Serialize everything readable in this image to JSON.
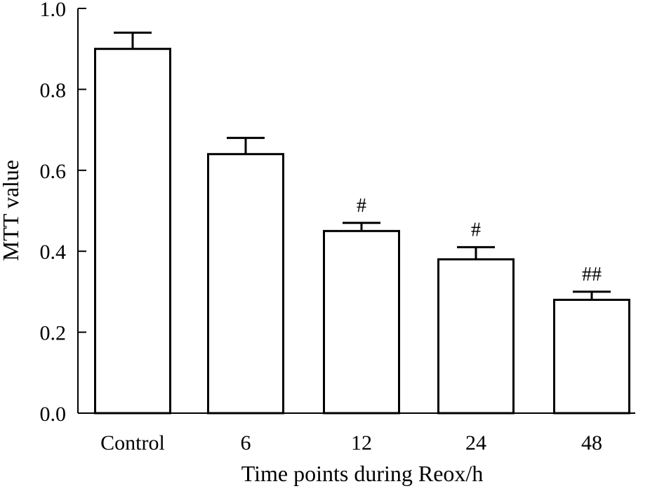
{
  "chart_data": {
    "type": "bar",
    "title": "",
    "xlabel": "Time points during Reox/h",
    "ylabel": "MTT value",
    "categories": [
      "Control",
      "6",
      "12",
      "24",
      "48"
    ],
    "values": [
      0.9,
      0.64,
      0.45,
      0.38,
      0.28
    ],
    "errors": [
      0.04,
      0.04,
      0.02,
      0.03,
      0.02
    ],
    "annotations": [
      "",
      "",
      "#",
      "#",
      "##"
    ],
    "ylim": [
      0.0,
      1.0
    ],
    "yticks": [
      "0.0",
      "0.2",
      "0.4",
      "0.6",
      "0.8",
      "1.0"
    ],
    "grid": false,
    "legend": "none",
    "bar_fill": "#ffffff",
    "stroke_color": "#000000"
  }
}
